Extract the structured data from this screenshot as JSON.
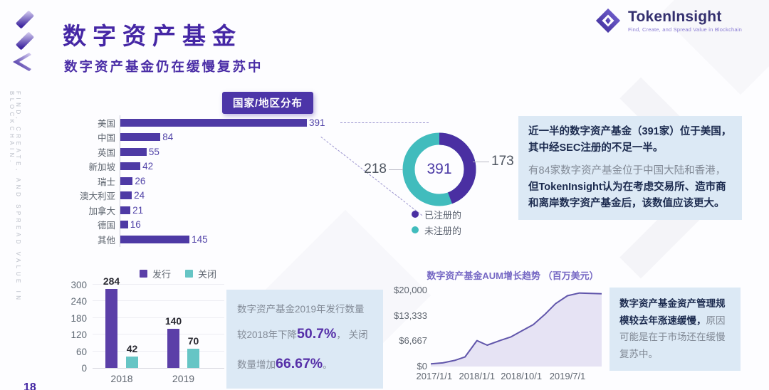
{
  "page": {
    "title": "数字资产基金",
    "subtitle": "数字资产基金仍在缓慢复苏中",
    "page_number": "18",
    "sidebar_text": "FIND, CREATE, AND SPREAD VALUE IN BLOCKCHAIN.",
    "accent_purple": "#4a2fa2",
    "accent_teal": "#41bcbd",
    "infobox_bg": "#dce9f5"
  },
  "logo": {
    "name": "TokenInsight",
    "tagline": "Find, Create, and Spread Value in Blockchain"
  },
  "chart_data": [
    {
      "id": "country-distribution",
      "type": "bar",
      "orientation": "horizontal",
      "title": "国家/地区分布",
      "categories": [
        "美国",
        "中国",
        "英国",
        "新加坡",
        "瑞士",
        "澳大利亚",
        "加拿大",
        "德国",
        "其他"
      ],
      "values": [
        391,
        84,
        55,
        42,
        26,
        24,
        21,
        16,
        145
      ],
      "bar_color": "#4e3aa5",
      "xlim": [
        0,
        391
      ]
    },
    {
      "id": "sec-registration-donut",
      "type": "pie",
      "center_label": "391",
      "slices": [
        {
          "label": "已注册的",
          "value": 173,
          "color": "#4a2fa2"
        },
        {
          "label": "未注册的",
          "value": 218,
          "color": "#41bcbd"
        }
      ],
      "legend_position": "bottom"
    },
    {
      "id": "issued-closed-by-year",
      "type": "bar",
      "categories": [
        "2018",
        "2019"
      ],
      "series": [
        {
          "name": "发行",
          "color": "#5b3fa8",
          "values": [
            284,
            140
          ]
        },
        {
          "name": "关闭",
          "color": "#66c5c5",
          "values": [
            42,
            70
          ]
        }
      ],
      "ylim": [
        0,
        300
      ],
      "yticks": [
        0,
        60,
        120,
        180,
        240,
        300
      ],
      "legend_position": "top"
    },
    {
      "id": "aum-trend",
      "type": "area",
      "title": "数字资产基金AUM增长趋势 （百万美元）",
      "line_color": "#6156ab",
      "fill_color": "#e6e3f4",
      "ylim": [
        0,
        20000
      ],
      "yticks": [
        {
          "label": "$0",
          "value": 0
        },
        {
          "label": "$6,667",
          "value": 6667
        },
        {
          "label": "$13,333",
          "value": 13333
        },
        {
          "label": "$20,000",
          "value": 20000
        }
      ],
      "xticks": [
        {
          "label": "2017/1/1",
          "pos": 0.02
        },
        {
          "label": "2018/1/1",
          "pos": 0.27
        },
        {
          "label": "2018/10/1",
          "pos": 0.53
        },
        {
          "label": "2019/7/1",
          "pos": 0.8
        }
      ],
      "points": [
        [
          0,
          700
        ],
        [
          0.07,
          950
        ],
        [
          0.14,
          1600
        ],
        [
          0.2,
          2500
        ],
        [
          0.27,
          6800
        ],
        [
          0.33,
          5600
        ],
        [
          0.41,
          6900
        ],
        [
          0.47,
          7800
        ],
        [
          0.53,
          9300
        ],
        [
          0.6,
          11000
        ],
        [
          0.67,
          13800
        ],
        [
          0.73,
          16500
        ],
        [
          0.8,
          18600
        ],
        [
          0.87,
          19300
        ],
        [
          1,
          19100
        ]
      ]
    }
  ],
  "insights": {
    "box1": {
      "p1": "近一半的数字资产基金（391家）位于美国，其中经SEC注册的不足一半。",
      "p2": [
        {
          "t": "有84家数字资产基金位于中国大陆和香港，",
          "s": "muted"
        },
        {
          "t": "但TokenInsight认为在考虑交易所、造市商和离岸数字资产基金后，该数值应该更大。",
          "s": "strong"
        }
      ]
    },
    "box2": [
      {
        "t": "数字资产基金2019年发行数量较2018年下降",
        "s": "muted"
      },
      {
        "t": "50.7%",
        "s": "big"
      },
      {
        "t": "， 关闭数量增加",
        "s": "muted"
      },
      {
        "t": "66.67%",
        "s": "big"
      },
      {
        "t": "。",
        "s": "muted"
      }
    ],
    "box3": [
      {
        "t": "数字资产基金资产管理规模较去年涨速缓慢，",
        "s": "strong"
      },
      {
        "t": "原因可能是在于市场还在缓慢复苏中。",
        "s": "muted"
      }
    ]
  }
}
